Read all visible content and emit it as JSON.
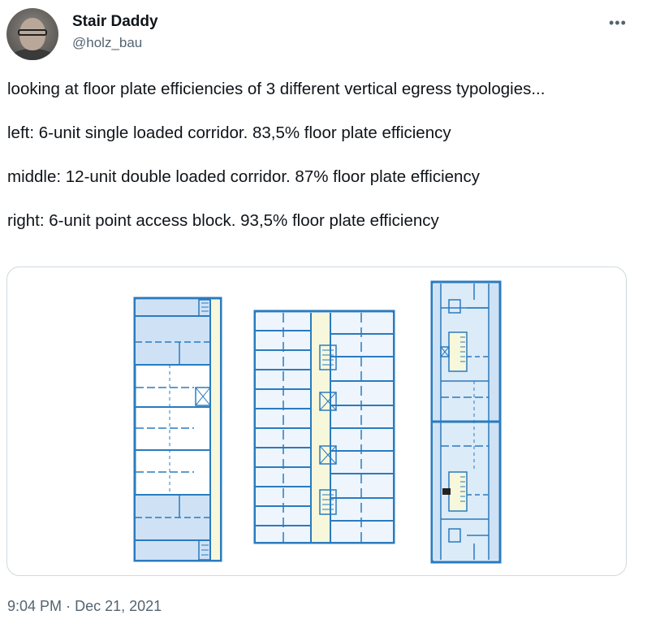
{
  "author": {
    "name": "Stair Daddy",
    "handle": "@holz_bau"
  },
  "menu_icon": "more-dots-icon",
  "tweet": {
    "paragraphs": [
      "looking at floor plate efficiencies of 3 different vertical egress typologies...",
      "left: 6-unit single loaded corridor. 83,5% floor plate efficiency",
      "middle: 12-unit double loaded corridor. 87% floor plate efficiency",
      "right: 6-unit point access block. 93,5% floor plate efficiency"
    ]
  },
  "media": {
    "plan_colors": {
      "wall": "#2a7bbf",
      "unit": "#dcebf8",
      "corridor": "#f7f7dc",
      "light": "#eef5fc"
    }
  },
  "timestamp": {
    "time": "9:04 PM",
    "separator": "·",
    "date": "Dec 21, 2021"
  }
}
